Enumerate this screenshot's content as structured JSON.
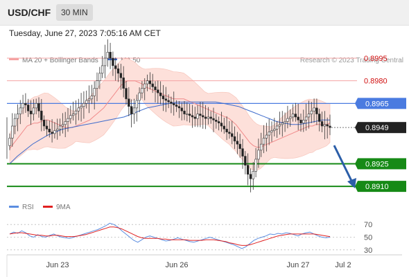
{
  "header": {
    "symbol": "USD/CHF",
    "timeframe": "30 MIN"
  },
  "datetime": "Tuesday, June 27, 2023 7:05:16 AM CET",
  "legend": {
    "ma20_bb": "MA 20 + Bollinger Bands",
    "ma50": "MA 50"
  },
  "copyright": "Research © 2023 Trading Central",
  "rsi_legend": {
    "rsi": "RSI",
    "ma9": "9MA"
  },
  "colors": {
    "resistance": "#f5a3a3",
    "resistance_text": "#d11010",
    "support": "#168a16",
    "ma50": "#3d6bcc",
    "pivot_line": "#4a7be0",
    "bollinger_fill": "#fde0da",
    "ma20": "#f08a8a",
    "candle_up": "#ffffff",
    "candle_down": "#222222",
    "arrow": "#2b5ea8"
  },
  "chart_data": [
    {
      "type": "candlestick",
      "xlabels": [
        "Jun 23",
        "Jun 26",
        "Jun 27",
        "Jul 2"
      ],
      "ylim": [
        0.8905,
        0.9012
      ],
      "levels": [
        {
          "value": 0.8995,
          "label": "0.8995",
          "kind": "resistance"
        },
        {
          "value": 0.898,
          "label": "0.8980",
          "kind": "resistance"
        },
        {
          "value": 0.8965,
          "label": "0.8965",
          "kind": "pivot"
        },
        {
          "value": 0.8949,
          "label": "0.8949",
          "kind": "current"
        },
        {
          "value": 0.8925,
          "label": "0.8925",
          "kind": "support"
        },
        {
          "value": 0.891,
          "label": "0.8910",
          "kind": "support"
        }
      ],
      "close": [
        0.8942,
        0.895,
        0.8955,
        0.8958,
        0.8962,
        0.8965,
        0.8964,
        0.896,
        0.8958,
        0.8962,
        0.8965,
        0.896,
        0.8954,
        0.895,
        0.8948,
        0.8946,
        0.8945,
        0.8947,
        0.8948,
        0.895,
        0.8951,
        0.8953,
        0.8955,
        0.8957,
        0.8958,
        0.896,
        0.8962,
        0.8963,
        0.8965,
        0.8967,
        0.8968,
        0.897,
        0.8975,
        0.898,
        0.8985,
        0.899,
        0.8995,
        0.8999,
        0.8995,
        0.899,
        0.8988,
        0.8985,
        0.8982,
        0.8975,
        0.8968,
        0.8963,
        0.8958,
        0.8962,
        0.8967,
        0.8972,
        0.8975,
        0.8978,
        0.898,
        0.8978,
        0.8976,
        0.8974,
        0.8972,
        0.897,
        0.8968,
        0.8967,
        0.8966,
        0.8965,
        0.8964,
        0.8963,
        0.8962,
        0.896,
        0.8958,
        0.8958,
        0.8957,
        0.8956,
        0.8955,
        0.8958,
        0.8957,
        0.8956,
        0.8955,
        0.8956,
        0.8955,
        0.8954,
        0.8953,
        0.8952,
        0.895,
        0.8948,
        0.8946,
        0.8945,
        0.8943,
        0.894,
        0.8938,
        0.8935,
        0.893,
        0.8924,
        0.8918,
        0.8915,
        0.892,
        0.8928,
        0.8934,
        0.8938,
        0.8942,
        0.8944,
        0.8946,
        0.8947,
        0.8948,
        0.895,
        0.8951,
        0.8952,
        0.8953,
        0.8955,
        0.8956,
        0.8958,
        0.8956,
        0.8954,
        0.8952,
        0.8954,
        0.8956,
        0.8958,
        0.896,
        0.8962,
        0.8958,
        0.8953,
        0.895,
        0.8951,
        0.895,
        0.8949
      ],
      "ma20": [
        0.8935,
        0.8938,
        0.8941,
        0.8944,
        0.8947,
        0.895,
        0.8951,
        0.8952,
        0.8952,
        0.8953,
        0.8954,
        0.8954,
        0.8953,
        0.8952,
        0.8951,
        0.895,
        0.8949,
        0.8949,
        0.8949,
        0.895,
        0.8951,
        0.8952,
        0.8953,
        0.8954,
        0.8956,
        0.8958,
        0.896,
        0.8962,
        0.8965,
        0.8968,
        0.8971,
        0.8974,
        0.8977,
        0.8979,
        0.898,
        0.898,
        0.898,
        0.8979,
        0.8978,
        0.8976,
        0.8975,
        0.8974,
        0.8973,
        0.8972,
        0.8971,
        0.897,
        0.8969,
        0.8968,
        0.8968,
        0.8968,
        0.8968,
        0.8967,
        0.8966,
        0.8965,
        0.8964,
        0.8963,
        0.8962,
        0.8961,
        0.896,
        0.8959,
        0.8958,
        0.8957,
        0.8956,
        0.8955,
        0.8953,
        0.8951,
        0.8948,
        0.8945,
        0.8942,
        0.8939,
        0.8937,
        0.8936,
        0.8936,
        0.8937,
        0.8938,
        0.8939,
        0.894,
        0.8941,
        0.8942,
        0.8943,
        0.8944,
        0.8945,
        0.8946,
        0.8947,
        0.8948,
        0.8949,
        0.895,
        0.895,
        0.8951,
        0.8951,
        0.8951,
        0.8951,
        0.8952
      ],
      "ma50": [
        0.8925,
        0.893,
        0.8934,
        0.8938,
        0.8941,
        0.8944,
        0.8946,
        0.8948,
        0.8949,
        0.895,
        0.8951,
        0.8952,
        0.8953,
        0.8954,
        0.8955,
        0.8956,
        0.8958,
        0.896,
        0.8962,
        0.8963,
        0.8964,
        0.8965,
        0.8966,
        0.8966,
        0.8966,
        0.8966,
        0.8966,
        0.8966,
        0.8965,
        0.8964,
        0.8963,
        0.8961,
        0.8959,
        0.8957,
        0.8955,
        0.8953,
        0.8952,
        0.8951,
        0.8951,
        0.8952,
        0.8953,
        0.8954,
        0.8954
      ]
    },
    {
      "type": "line",
      "title": "RSI",
      "yticks": [
        70,
        50,
        30
      ],
      "ylim": [
        20,
        80
      ],
      "series": [
        {
          "name": "RSI",
          "values": [
            55,
            58,
            56,
            60,
            57,
            52,
            50,
            54,
            51,
            50,
            53,
            55,
            52,
            50,
            49,
            48,
            50,
            52,
            54,
            56,
            58,
            60,
            62,
            65,
            68,
            72,
            70,
            66,
            60,
            55,
            50,
            45,
            42,
            46,
            50,
            52,
            50,
            48,
            46,
            44,
            45,
            47,
            49,
            47,
            45,
            43,
            42,
            44,
            46,
            48,
            50,
            48,
            46,
            44,
            42,
            40,
            38,
            35,
            32,
            35,
            40,
            45,
            48,
            50,
            52,
            55,
            54,
            56,
            55,
            57,
            56,
            54,
            52,
            55,
            57,
            58,
            55,
            52,
            50,
            49,
            50
          ]
        },
        {
          "name": "9MA",
          "values": [
            55,
            56,
            57,
            57,
            56,
            55,
            54,
            53,
            53,
            52,
            52,
            53,
            53,
            52,
            51,
            51,
            51,
            52,
            53,
            54,
            56,
            58,
            60,
            62,
            64,
            66,
            66,
            65,
            63,
            60,
            57,
            54,
            51,
            49,
            48,
            48,
            48,
            48,
            47,
            47,
            46,
            46,
            46,
            46,
            46,
            45,
            45,
            45,
            45,
            46,
            46,
            46,
            45,
            44,
            43,
            41,
            40,
            38,
            37,
            37,
            38,
            40,
            42,
            44,
            46,
            48,
            50,
            52,
            53,
            54,
            55,
            55,
            55,
            55,
            55,
            55,
            55,
            54,
            53,
            52,
            51
          ]
        }
      ]
    }
  ]
}
